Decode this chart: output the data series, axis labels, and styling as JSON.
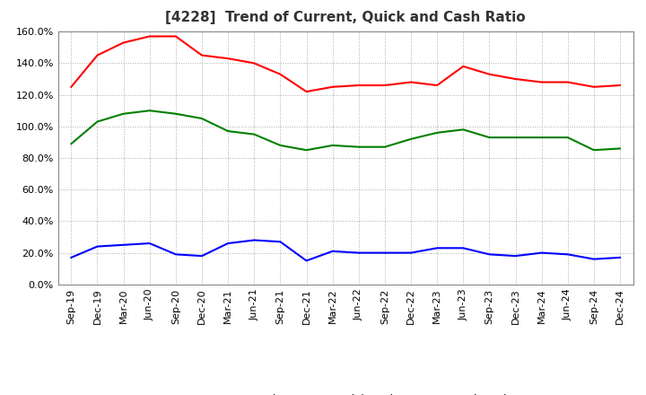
{
  "title": "[4228]  Trend of Current, Quick and Cash Ratio",
  "x_labels": [
    "Sep-19",
    "Dec-19",
    "Mar-20",
    "Jun-20",
    "Sep-20",
    "Dec-20",
    "Mar-21",
    "Jun-21",
    "Sep-21",
    "Dec-21",
    "Mar-22",
    "Jun-22",
    "Sep-22",
    "Dec-22",
    "Mar-23",
    "Jun-23",
    "Sep-23",
    "Dec-23",
    "Mar-24",
    "Jun-24",
    "Sep-24",
    "Dec-24"
  ],
  "current_ratio": [
    125,
    145,
    153,
    157,
    157,
    145,
    143,
    140,
    133,
    122,
    125,
    126,
    126,
    128,
    126,
    138,
    133,
    130,
    128,
    128,
    125,
    126
  ],
  "quick_ratio": [
    89,
    103,
    108,
    110,
    108,
    105,
    97,
    95,
    88,
    85,
    88,
    87,
    87,
    92,
    96,
    98,
    93,
    93,
    93,
    93,
    85,
    86
  ],
  "cash_ratio": [
    17,
    24,
    25,
    26,
    19,
    18,
    26,
    28,
    27,
    15,
    21,
    20,
    20,
    20,
    23,
    23,
    19,
    18,
    20,
    19,
    16,
    17
  ],
  "ylim": [
    0,
    160
  ],
  "yticks": [
    0,
    20,
    40,
    60,
    80,
    100,
    120,
    140,
    160
  ],
  "current_color": "#ff0000",
  "quick_color": "#008000",
  "cash_color": "#0000ff",
  "grid_color": "#aaaaaa",
  "background_color": "#ffffff",
  "title_fontsize": 11,
  "legend_fontsize": 9,
  "tick_fontsize": 8
}
